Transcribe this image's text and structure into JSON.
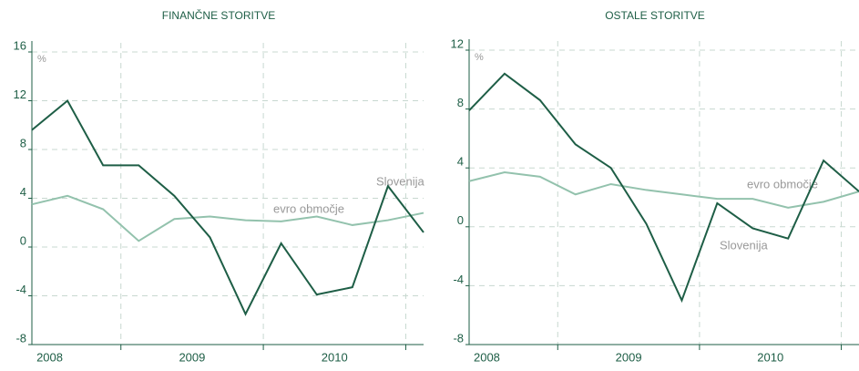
{
  "chart_data": [
    {
      "type": "line",
      "title": "FINANČNE STORITVE",
      "y_unit": "%",
      "categories": [
        "2008",
        null,
        null,
        null,
        "2009",
        null,
        null,
        null,
        "2010",
        null,
        null,
        null
      ],
      "series": [
        {
          "name": "Slovenija",
          "color": "#1e5e46",
          "values": [
            9.6,
            12,
            6.7,
            6.7,
            4.2,
            0.8,
            -5.5,
            0.3,
            -3.9,
            -3.3,
            5,
            1.2
          ]
        },
        {
          "name": "evro območje",
          "color": "#93c2ad",
          "values": [
            3.5,
            4.2,
            3.1,
            0.5,
            2.3,
            2.5,
            2.2,
            2.1,
            2.5,
            1.8,
            2.2,
            2.8
          ]
        }
      ],
      "ylim": [
        -8,
        16
      ],
      "yticks": [
        -8,
        -4,
        0,
        4,
        8,
        12,
        16
      ],
      "grid": true
    },
    {
      "type": "line",
      "title": "OSTALE STORITVE",
      "y_unit": "%",
      "categories": [
        "2008",
        null,
        null,
        null,
        "2009",
        null,
        null,
        null,
        "2010",
        null,
        null,
        null
      ],
      "series": [
        {
          "name": "Slovenija",
          "color": "#1e5e46",
          "values": [
            7.9,
            10.4,
            8.6,
            5.6,
            4.0,
            0.2,
            -5.0,
            1.6,
            -0.1,
            -0.8,
            4.5,
            2.4
          ]
        },
        {
          "name": "evro območje",
          "color": "#93c2ad",
          "values": [
            3.1,
            3.7,
            3.4,
            2.2,
            2.9,
            2.5,
            2.2,
            1.9,
            1.9,
            1.3,
            1.7,
            2.4
          ]
        }
      ],
      "ylim": [
        -8,
        12
      ],
      "yticks": [
        -8,
        -4,
        0,
        4,
        8,
        12
      ],
      "grid": true
    }
  ]
}
